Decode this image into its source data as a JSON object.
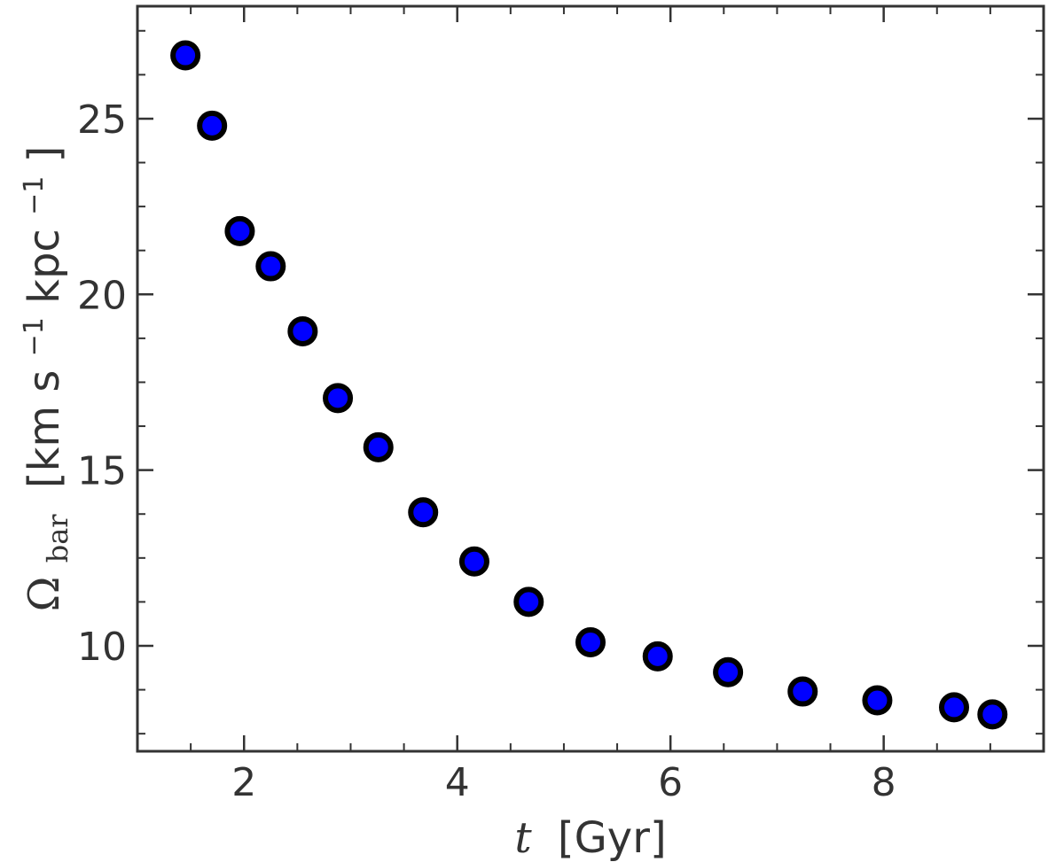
{
  "chart_data": {
    "type": "scatter",
    "title": "",
    "xlabel": {
      "variable": "t",
      "unit": "[Gyr]"
    },
    "ylabel": {
      "symbol": "Ω",
      "subscript": "bar",
      "unit_prefix": "[km s",
      "unit_exp1": "−1",
      "unit_mid": " kpc",
      "unit_exp2": "−1",
      "unit_suffix": "]"
    },
    "xlim": [
      1.0,
      9.5
    ],
    "ylim": [
      7.0,
      28.2
    ],
    "xticks": [
      2,
      4,
      6,
      8
    ],
    "xtick_labels": [
      "2",
      "4",
      "6",
      "8"
    ],
    "yticks": [
      10,
      15,
      20,
      25
    ],
    "ytick_labels": [
      "10",
      "15",
      "20",
      "25"
    ],
    "x_minor_step": 0.5,
    "y_minor_step": 1.25,
    "grid": false,
    "series": [
      {
        "color": "#0000ff",
        "edgecolor": "#000000",
        "x": [
          1.45,
          1.7,
          1.96,
          2.25,
          2.55,
          2.88,
          3.26,
          3.68,
          4.16,
          4.67,
          5.25,
          5.88,
          6.54,
          7.24,
          7.94,
          8.66,
          9.02
        ],
        "y": [
          26.8,
          24.8,
          21.8,
          20.8,
          18.95,
          17.05,
          15.65,
          13.8,
          12.4,
          11.25,
          10.1,
          9.7,
          9.25,
          8.7,
          8.45,
          8.25,
          8.05
        ]
      }
    ]
  }
}
